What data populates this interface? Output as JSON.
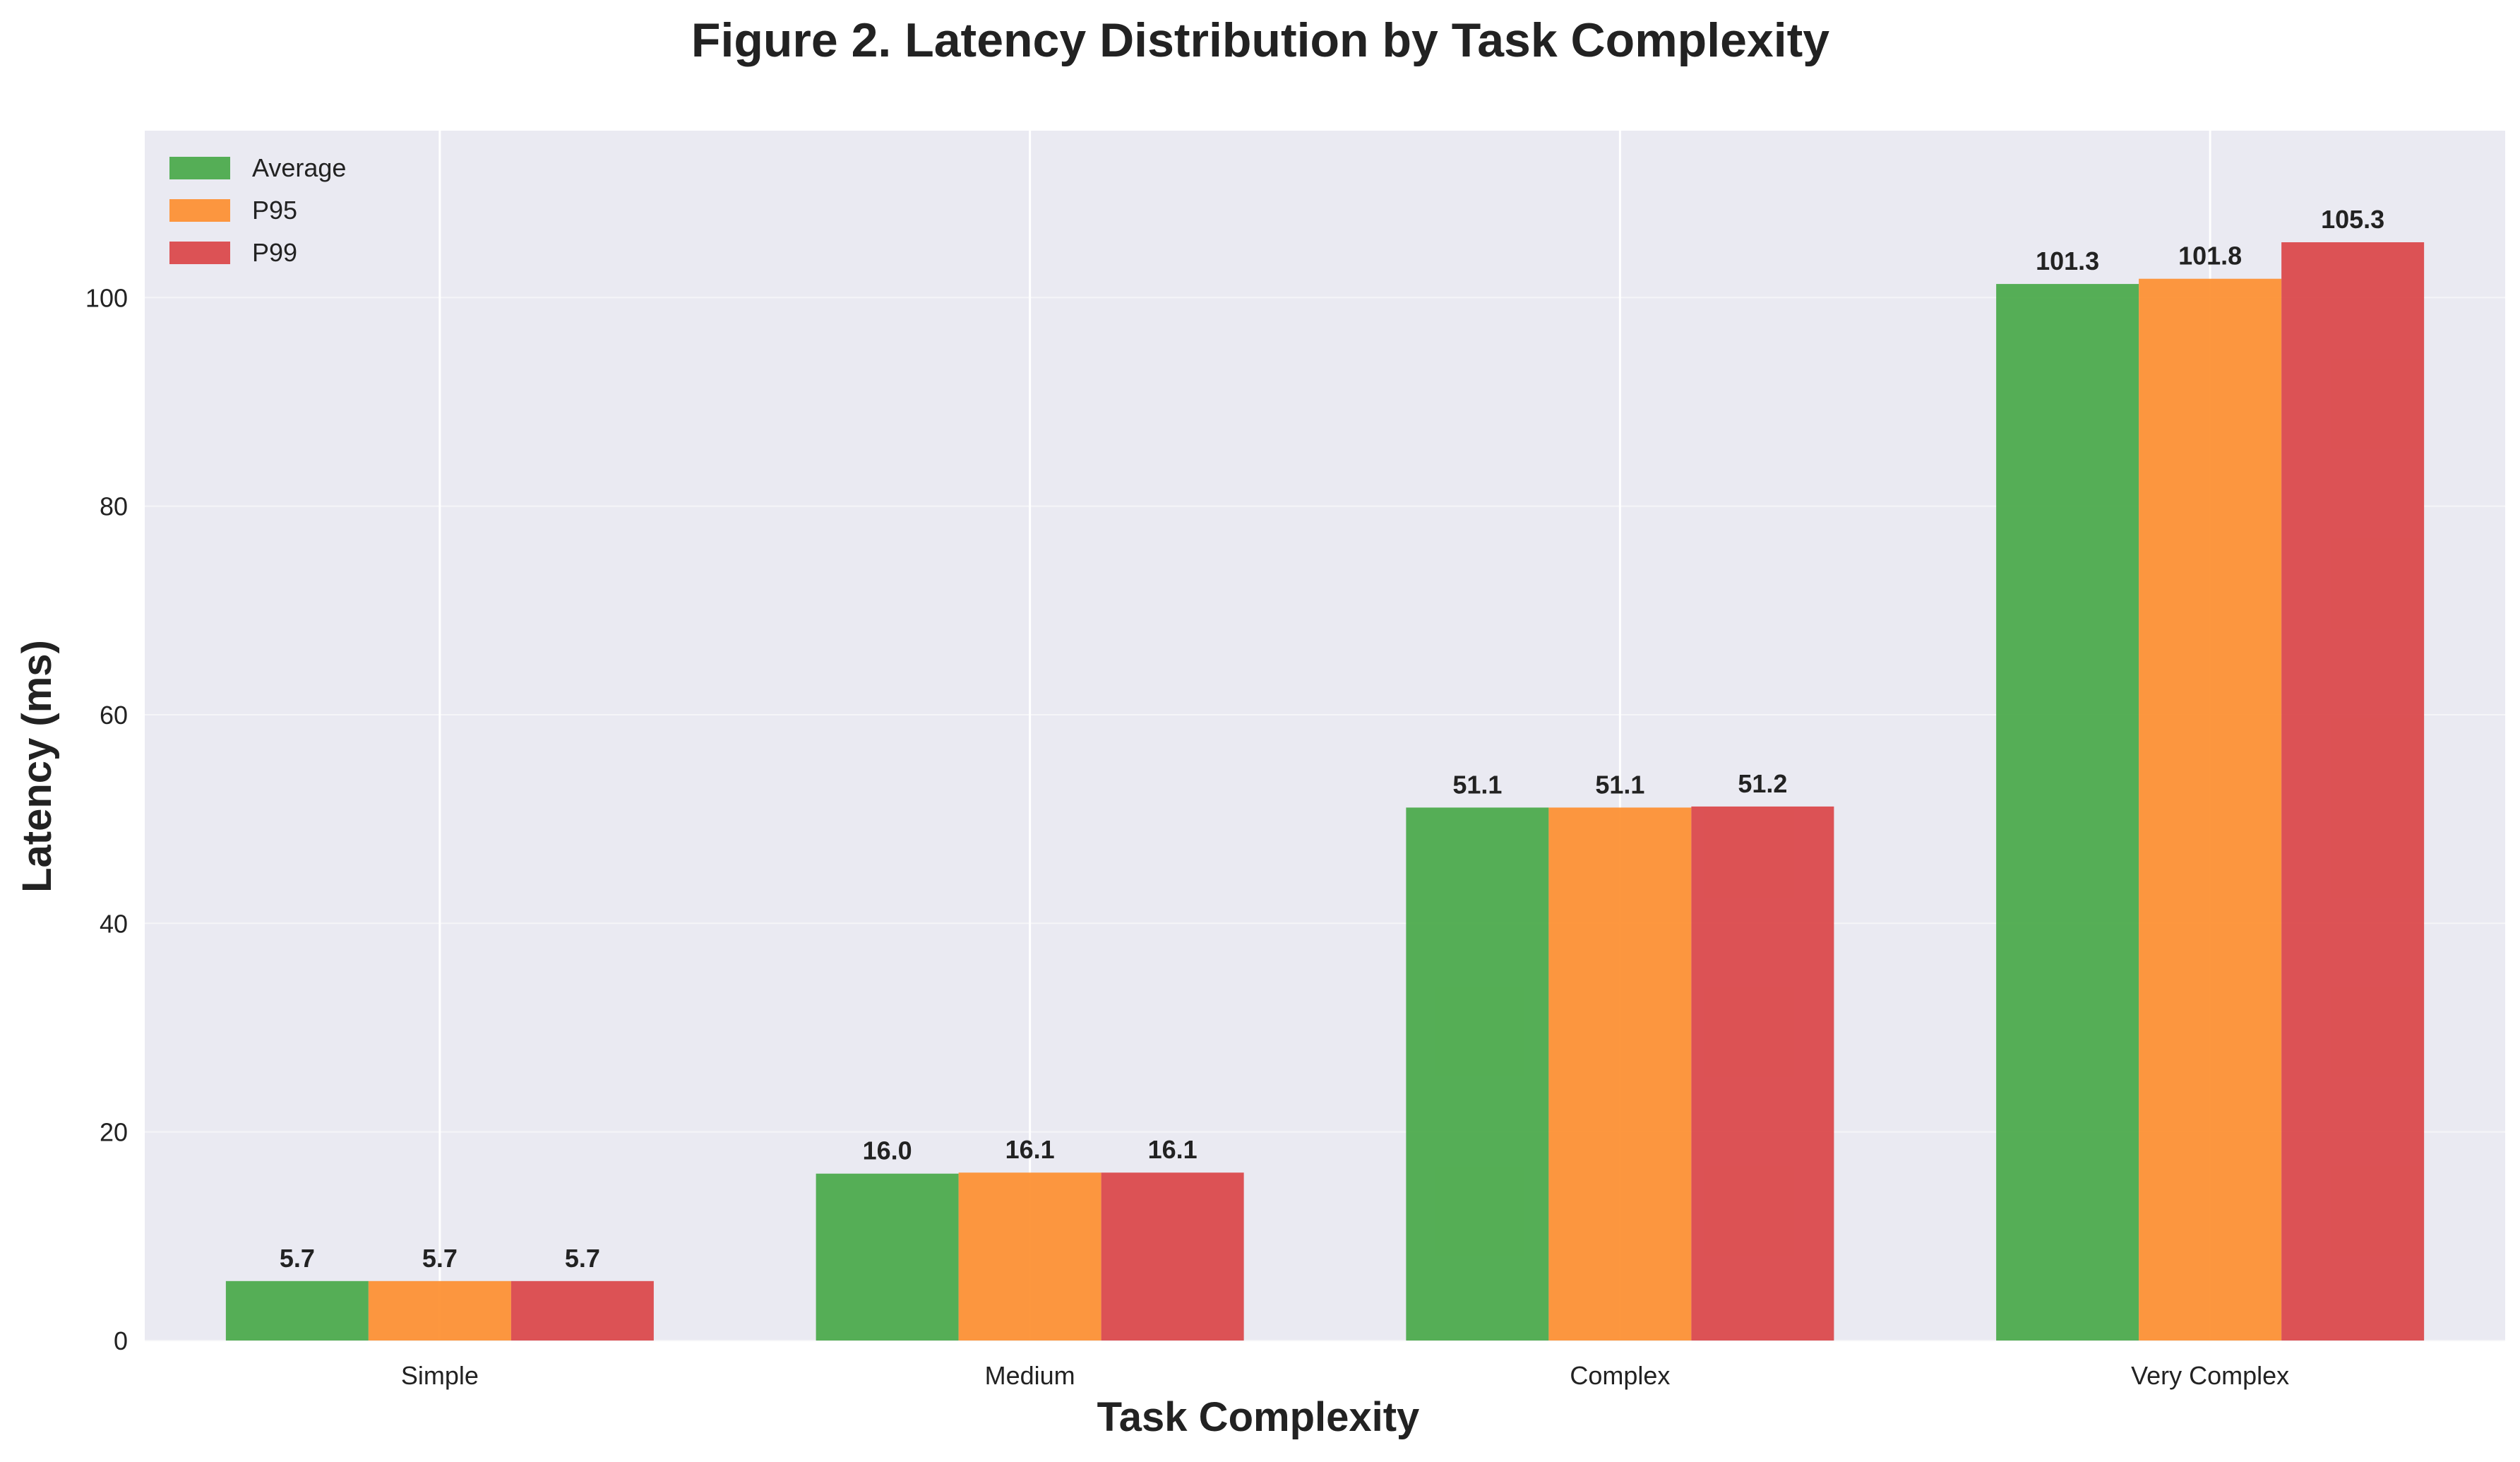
{
  "chart_data": {
    "type": "bar",
    "title": "Figure 2. Latency Distribution by Task Complexity",
    "xlabel": "Task Complexity",
    "ylabel": "Latency (ms)",
    "categories": [
      "Simple",
      "Medium",
      "Complex",
      "Very Complex"
    ],
    "series": [
      {
        "name": "Average",
        "color": "#4dab4d",
        "values": [
          5.7,
          16.0,
          51.1,
          101.3
        ],
        "labels": [
          "5.7",
          "16.0",
          "51.1",
          "101.3"
        ]
      },
      {
        "name": "P95",
        "color": "#fd9135",
        "values": [
          5.7,
          16.1,
          51.1,
          101.8
        ],
        "labels": [
          "5.7",
          "16.1",
          "51.1",
          "101.8"
        ]
      },
      {
        "name": "P99",
        "color": "#db4a4c",
        "values": [
          5.7,
          16.1,
          51.2,
          105.3
        ],
        "labels": [
          "5.7",
          "16.1",
          "51.2",
          "105.3"
        ]
      }
    ],
    "ylim": [
      0,
      116
    ],
    "yticks": [
      0,
      20,
      40,
      60,
      80,
      100
    ],
    "grid": true,
    "legend_position": "top-left",
    "plot_background": "#eaeaf2"
  }
}
